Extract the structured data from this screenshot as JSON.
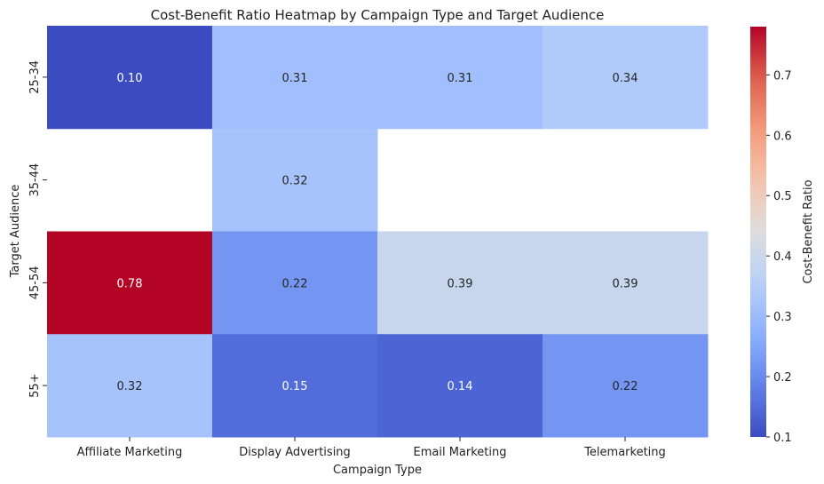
{
  "chart_data": {
    "type": "heatmap",
    "title": "Cost-Benefit Ratio Heatmap by Campaign Type and Target Audience",
    "xlabel": "Campaign Type",
    "ylabel": "Target Audience",
    "x_categories": [
      "Affiliate Marketing",
      "Display Advertising",
      "Email Marketing",
      "Telemarketing"
    ],
    "y_categories": [
      "25-34",
      "35-44",
      "45-54",
      "55+"
    ],
    "values": [
      [
        0.1,
        0.31,
        0.31,
        0.34
      ],
      [
        null,
        0.32,
        null,
        null
      ],
      [
        0.78,
        0.22,
        0.39,
        0.39
      ],
      [
        0.32,
        0.15,
        0.14,
        0.22
      ]
    ],
    "value_labels": [
      [
        "0.10",
        "0.31",
        "0.31",
        "0.34"
      ],
      [
        "",
        "0.32",
        "",
        ""
      ],
      [
        "0.78",
        "0.22",
        "0.39",
        "0.39"
      ],
      [
        "0.32",
        "0.15",
        "0.14",
        "0.22"
      ]
    ],
    "colormap": "coolwarm",
    "color_range": [
      0.1,
      0.78
    ],
    "colorbar": {
      "label": "Cost-Benefit Ratio",
      "ticks": [
        0.1,
        0.2,
        0.3,
        0.4,
        0.5,
        0.6,
        0.7
      ],
      "tick_labels": [
        "0.1",
        "0.2",
        "0.3",
        "0.4",
        "0.5",
        "0.6",
        "0.7"
      ]
    },
    "grid": false
  }
}
